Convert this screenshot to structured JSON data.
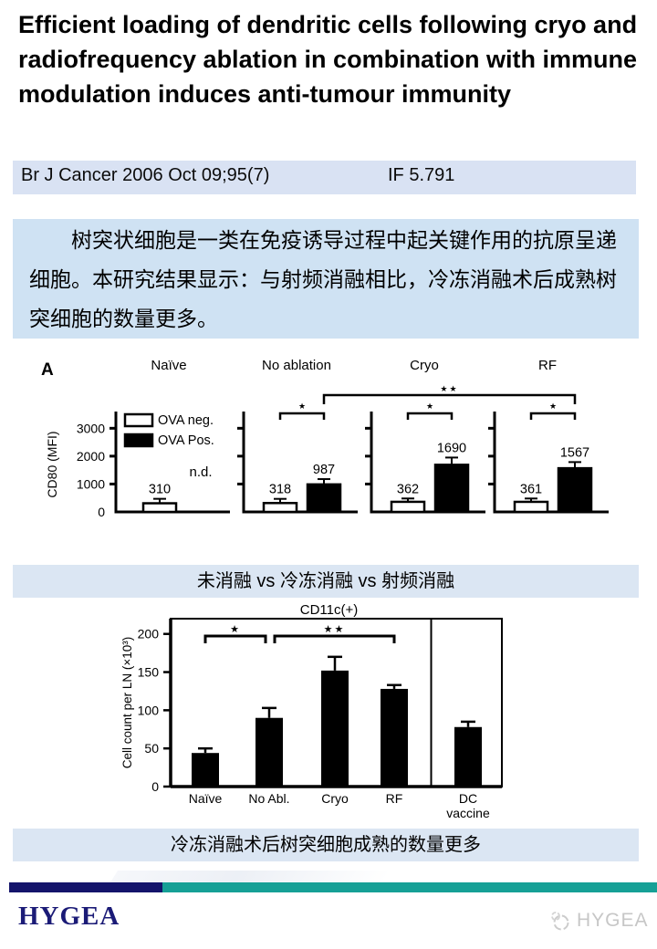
{
  "title": "Efficient loading of dendritic cells following cryo and radiofrequency ablation in combination with immune modulation induces anti-tumour immunity",
  "journal": {
    "citation": "Br J Cancer 2006 Oct 09;95(7)",
    "impact_factor": "IF 5.791"
  },
  "abstract_cn": "树突状细胞是一类在免疫诱导过程中起关键作用的抗原呈递细胞。本研究结果显示：与射频消融相比，冷冻消融术后成熟树突细胞的数量更多。",
  "captions": {
    "figure_a": "未消融 vs 冷冻消融 vs 射频消融",
    "figure_b": "冷冻消融术后树突细胞成熟的数量更多"
  },
  "footer": {
    "brand": "HYGEA",
    "watermark": "HYGEA"
  },
  "colors": {
    "journal_bar_bg": "#d9e2f3",
    "abstract_bg": "#cfe2f3",
    "caption_bar_bg": "#dbe6f3",
    "band_navy": "#14146b",
    "band_teal": "#16a096",
    "brand_text": "#1b1b77"
  },
  "chart_data": [
    {
      "id": "figA",
      "type": "bar",
      "figure_label": "A",
      "ylabel": "CD80 (MFI)",
      "yticks": [
        0,
        1000,
        2000,
        3000
      ],
      "ylim": [
        0,
        3600
      ],
      "legend_position": "inside-first-panel",
      "legend": [
        {
          "label": "OVA neg.",
          "fill": "#ffffff"
        },
        {
          "label": "OVA Pos.",
          "fill": "#000000"
        }
      ],
      "panels": [
        {
          "label": "Naïve",
          "annotation": "n.d.",
          "sig": null,
          "bars": [
            {
              "series": "OVA neg.",
              "value": 310,
              "error": 160,
              "data_label": "310"
            }
          ]
        },
        {
          "label": "No ablation",
          "sig": "*",
          "bars": [
            {
              "series": "OVA neg.",
              "value": 318,
              "error": 150,
              "data_label": "318"
            },
            {
              "series": "OVA Pos.",
              "value": 987,
              "error": 190,
              "data_label": "987"
            }
          ]
        },
        {
          "label": "Cryo",
          "sig": "*",
          "bars": [
            {
              "series": "OVA neg.",
              "value": 362,
              "error": 120,
              "data_label": "362"
            },
            {
              "series": "OVA Pos.",
              "value": 1690,
              "error": 260,
              "data_label": "1690"
            }
          ]
        },
        {
          "label": "RF",
          "sig": "*",
          "bars": [
            {
              "series": "OVA neg.",
              "value": 361,
              "error": 120,
              "data_label": "361"
            },
            {
              "series": "OVA Pos.",
              "value": 1567,
              "error": 220,
              "data_label": "1567"
            }
          ]
        }
      ],
      "cross_panel_sig": {
        "from_panel": 1,
        "to_panel": 3,
        "series": "OVA Pos.",
        "label": "**"
      }
    },
    {
      "id": "figB",
      "type": "bar",
      "title": "CD11c(+)",
      "ylabel": "Cell count per LN (×10³)",
      "yticks": [
        0,
        50,
        100,
        150,
        200
      ],
      "ylim": [
        0,
        220
      ],
      "categories": [
        "Naïve",
        "No Abl.",
        "Cryo",
        "RF",
        "DC\nvaccine"
      ],
      "values": [
        44,
        90,
        152,
        128,
        78
      ],
      "errors": [
        6,
        13,
        18,
        5,
        7
      ],
      "bar_color": "#000000",
      "separator_after_index": 3,
      "sig": [
        {
          "from": 0,
          "to": 1,
          "label": "*"
        },
        {
          "from": 1,
          "to": 3,
          "label": "**"
        }
      ]
    }
  ]
}
